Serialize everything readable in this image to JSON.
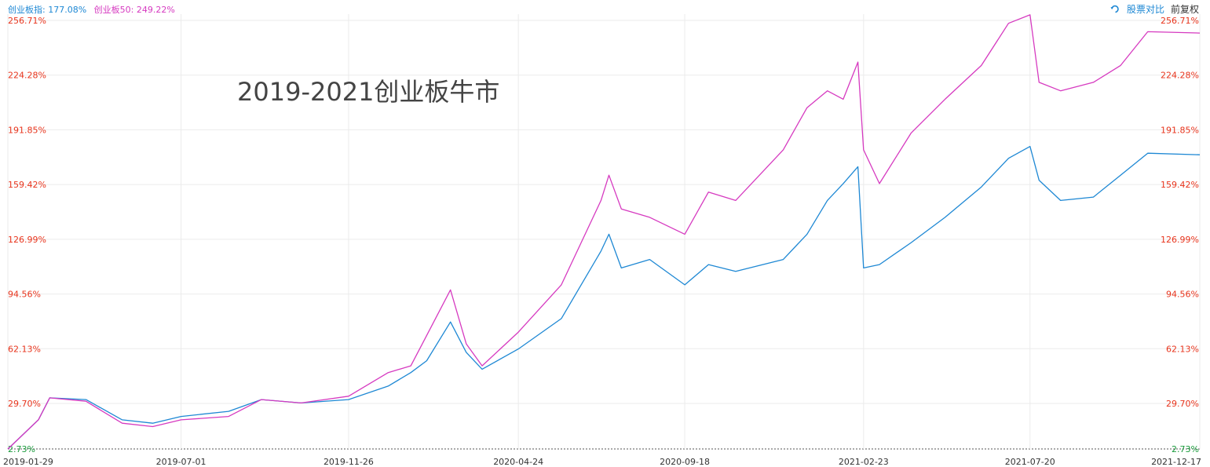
{
  "legend": {
    "series1": "创业板指: 177.08%",
    "series2": "创业板50: 249.22%"
  },
  "toolbar": {
    "compare_label": "股票对比",
    "adjust_label": "前复权",
    "compare_icon": "swap-icon"
  },
  "annotation": "2019-2021创业板牛市",
  "colors": {
    "series1": "#1e88d4",
    "series2": "#d63ac0",
    "tick_red": "#e8341c",
    "tick_green": "#1a9b3c",
    "grid": "#ebebeb"
  },
  "chart_data": {
    "type": "line",
    "grid": true,
    "ylim": [
      2.73,
      256.71
    ],
    "y_ticks": [
      "256.71%",
      "224.28%",
      "191.85%",
      "159.42%",
      "126.99%",
      "94.56%",
      "62.13%",
      "29.70%",
      "2.73%"
    ],
    "x_ticks": [
      "2019-01-29",
      "2019-07-01",
      "2019-11-26",
      "2020-04-24",
      "2020-09-18",
      "2021-02-23",
      "2021-07-20",
      "2021-12-17"
    ],
    "x": [
      "2019-01-29",
      "2019-02-25",
      "2019-03-07",
      "2019-04-08",
      "2019-05-10",
      "2019-06-06",
      "2019-07-01",
      "2019-08-12",
      "2019-09-10",
      "2019-10-15",
      "2019-11-26",
      "2019-12-31",
      "2020-01-20",
      "2020-02-03",
      "2020-02-24",
      "2020-03-09",
      "2020-03-23",
      "2020-04-24",
      "2020-06-01",
      "2020-07-06",
      "2020-07-13",
      "2020-07-24",
      "2020-08-18",
      "2020-09-18",
      "2020-10-09",
      "2020-11-02",
      "2020-12-14",
      "2021-01-04",
      "2021-01-22",
      "2021-02-05",
      "2021-02-18",
      "2021-02-23",
      "2021-03-09",
      "2021-04-06",
      "2021-05-06",
      "2021-06-07",
      "2021-07-01",
      "2021-07-20",
      "2021-07-28",
      "2021-08-16",
      "2021-09-14",
      "2021-10-08",
      "2021-11-01",
      "2021-12-17"
    ],
    "series": [
      {
        "name": "创业板指",
        "values": [
          2.7,
          20.0,
          33.0,
          32.0,
          20.0,
          18.0,
          22.0,
          25.0,
          32.0,
          30.0,
          32.0,
          40.0,
          48.0,
          55.0,
          78.0,
          60.0,
          50.0,
          62.0,
          80.0,
          120.0,
          130.0,
          110.0,
          115.0,
          100.0,
          112.0,
          108.0,
          115.0,
          130.0,
          150.0,
          160.0,
          170.0,
          110.0,
          112.0,
          125.0,
          140.0,
          158.0,
          175.0,
          182.0,
          162.0,
          150.0,
          152.0,
          165.0,
          178.0,
          177.08
        ]
      },
      {
        "name": "创业板50",
        "values": [
          2.7,
          20.0,
          33.0,
          31.0,
          18.0,
          16.0,
          20.0,
          22.0,
          32.0,
          30.0,
          34.0,
          48.0,
          52.0,
          70.0,
          97.0,
          65.0,
          52.0,
          72.0,
          100.0,
          150.0,
          165.0,
          145.0,
          140.0,
          130.0,
          155.0,
          150.0,
          180.0,
          205.0,
          215.0,
          210.0,
          232.0,
          180.0,
          160.0,
          190.0,
          210.0,
          230.0,
          255.0,
          260.0,
          220.0,
          215.0,
          220.0,
          230.0,
          250.0,
          249.22
        ]
      }
    ]
  }
}
